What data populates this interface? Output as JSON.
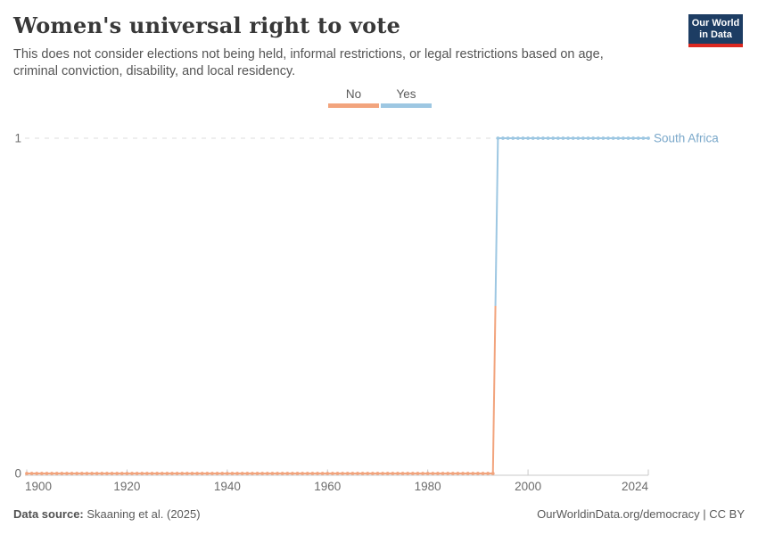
{
  "header": {
    "title": "Women's universal right to vote",
    "subtitle_line1": "This does not consider elections not being held, informal restrictions, or legal restrictions based on age,",
    "subtitle_line2": "criminal conviction, disability, and local residency."
  },
  "logo": {
    "line1": "Our World",
    "line2": "in Data",
    "bg_color": "#1d3d63",
    "accent_color": "#dc2820"
  },
  "legend": {
    "items": [
      {
        "label": "No",
        "color": "#f2a47d"
      },
      {
        "label": "Yes",
        "color": "#9dc7e2"
      }
    ]
  },
  "chart_data": {
    "type": "line",
    "style": "step",
    "title": "Women's universal right to vote",
    "xlabel": "",
    "ylabel": "",
    "xlim": [
      1900,
      2024
    ],
    "ylim": [
      0,
      1
    ],
    "x_ticks": [
      1900,
      1920,
      1940,
      1960,
      1980,
      2000,
      2024
    ],
    "y_ticks": [
      0,
      1
    ],
    "grid": "horizontal-dashed-at-top",
    "legend_position": "top-center",
    "point_markers": true,
    "series": [
      {
        "name": "South Africa",
        "label_color": "#7aa8ca",
        "segments": [
          {
            "legend": "No",
            "value": 0,
            "from": 1900,
            "to": 1993,
            "color": "#f2a47d"
          },
          {
            "legend": "Yes",
            "value": 1,
            "from": 1994,
            "to": 2024,
            "color": "#9dc7e2"
          }
        ]
      }
    ],
    "axis_color": "#c9c9c9",
    "gridline_color": "#dcdcdc",
    "tick_label_color": "#6c6c6c"
  },
  "footer": {
    "source_label": "Data source:",
    "source_value": "Skaaning et al. (2025)",
    "link_text": "OurWorldinData.org/democracy",
    "separator": " | ",
    "license": "CC BY"
  }
}
